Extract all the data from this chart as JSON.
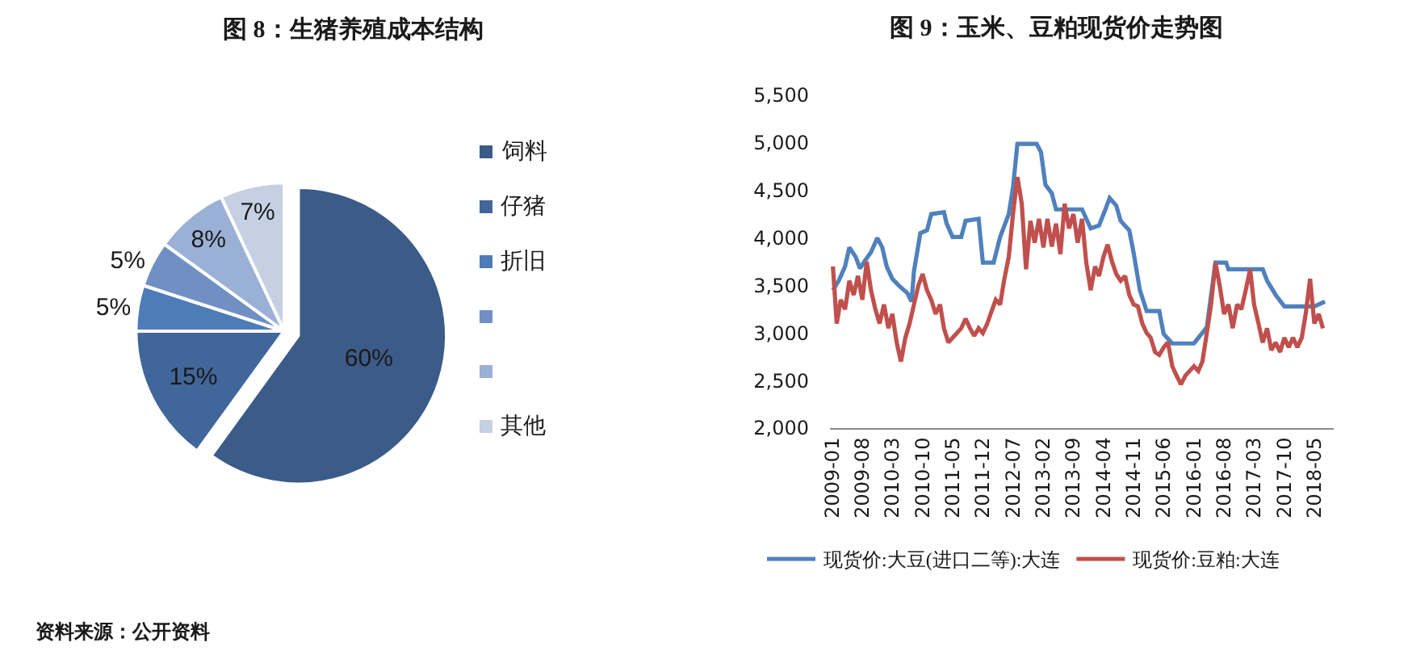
{
  "chart_data": [
    {
      "type": "pie",
      "title": "图 8：生猪养殖成本结构",
      "categories": [
        "饲料",
        "仔猪",
        "折旧",
        null,
        null,
        "其他"
      ],
      "values": [
        60,
        15,
        5,
        5,
        8,
        7
      ],
      "colors": [
        "#3b5b88",
        "#41669a",
        "#4d7cb8",
        "#7090c4",
        "#9bb0d5",
        "#c6d0e3"
      ],
      "value_labels": [
        "60%",
        "15%",
        "5%",
        "5%",
        "8%",
        "7%"
      ],
      "legend": "right",
      "annotations": [
        "资料来源：公开资料"
      ]
    },
    {
      "type": "line",
      "title": "图 9：玉米、豆粕现货价走势图",
      "series": [
        {
          "name": "现货价:大豆(进口二等):大连",
          "color": "#4f81bd",
          "x": [
            "2009-01-05",
            "2009-02-15",
            "2009-04-01",
            "2009-05-01",
            "2009-06-15",
            "2009-07-15",
            "2009-08-15",
            "2009-10-01",
            "2009-11-15",
            "2009-12-20",
            "2010-01-20",
            "2010-03-01",
            "2010-04-15",
            "2010-06-15",
            "2010-07-15",
            "2010-08-01",
            "2010-09-15",
            "2010-11-01",
            "2010-12-01",
            "2011-03-01",
            "2011-03-20",
            "2011-05-01",
            "2011-07-01",
            "2011-08-01",
            "2011-11-01",
            "2011-12-01",
            "2012-02-15",
            "2012-04-01",
            "2012-06-01",
            "2012-07-01",
            "2012-08-01",
            "2012-12-15",
            "2013-01-15",
            "2013-02-15",
            "2013-04-01",
            "2013-05-01",
            "2013-11-01",
            "2014-01-01",
            "2014-03-01",
            "2014-04-15",
            "2014-05-15",
            "2014-07-01",
            "2014-08-01",
            "2014-10-01",
            "2014-11-01",
            "2014-12-15",
            "2015-02-01",
            "2015-05-01",
            "2015-06-01",
            "2015-08-01",
            "2016-01-01",
            "2016-04-01",
            "2016-06-01",
            "2016-08-15",
            "2016-09-01",
            "2017-05-01",
            "2017-06-01",
            "2017-08-01",
            "2017-10-01",
            "2018-05-01",
            "2018-07-15"
          ],
          "values": [
            3450,
            3550,
            3700,
            3900,
            3800,
            3680,
            3750,
            3850,
            4000,
            3900,
            3700,
            3570,
            3500,
            3420,
            3330,
            3650,
            4050,
            4080,
            4250,
            4270,
            4150,
            4010,
            4010,
            4180,
            4200,
            3740,
            3740,
            4010,
            4250,
            4530,
            4990,
            4990,
            4900,
            4560,
            4470,
            4300,
            4300,
            4100,
            4130,
            4300,
            4420,
            4340,
            4180,
            4080,
            3840,
            3450,
            3230,
            3230,
            2990,
            2890,
            2890,
            3060,
            3740,
            3740,
            3670,
            3670,
            3550,
            3400,
            3280,
            3280,
            3330
          ]
        },
        {
          "name": "现货价:豆粕:大连",
          "color": "#c0504d",
          "x": [
            "2009-01-05",
            "2009-02-01",
            "2009-03-01",
            "2009-04-01",
            "2009-05-01",
            "2009-06-01",
            "2009-07-01",
            "2009-08-01",
            "2009-09-01",
            "2009-10-01",
            "2009-11-01",
            "2009-12-01",
            "2010-01-01",
            "2010-02-01",
            "2010-03-01",
            "2010-04-01",
            "2010-05-01",
            "2010-06-01",
            "2010-07-01",
            "2010-08-01",
            "2010-09-01",
            "2010-10-01",
            "2010-11-01",
            "2010-12-01",
            "2011-01-01",
            "2011-02-01",
            "2011-03-01",
            "2011-04-01",
            "2011-05-01",
            "2011-06-01",
            "2011-07-01",
            "2011-08-01",
            "2011-09-01",
            "2011-10-01",
            "2011-11-01",
            "2011-12-01",
            "2012-01-01",
            "2012-02-01",
            "2012-03-01",
            "2012-04-01",
            "2012-05-01",
            "2012-06-01",
            "2012-07-01",
            "2012-08-01",
            "2012-09-01",
            "2012-10-01",
            "2012-11-01",
            "2012-12-01",
            "2013-01-01",
            "2013-02-01",
            "2013-03-01",
            "2013-04-01",
            "2013-05-01",
            "2013-06-01",
            "2013-07-01",
            "2013-08-01",
            "2013-09-01",
            "2013-10-01",
            "2013-11-01",
            "2013-12-01",
            "2014-01-01",
            "2014-02-01",
            "2014-03-01",
            "2014-04-01",
            "2014-05-01",
            "2014-06-01",
            "2014-07-01",
            "2014-08-01",
            "2014-09-01",
            "2014-10-01",
            "2014-11-01",
            "2014-12-01",
            "2015-01-01",
            "2015-02-01",
            "2015-03-01",
            "2015-04-01",
            "2015-05-01",
            "2015-06-01",
            "2015-07-01",
            "2015-08-01",
            "2015-09-01",
            "2015-10-01",
            "2015-11-01",
            "2015-12-01",
            "2016-01-01",
            "2016-02-01",
            "2016-03-01",
            "2016-04-01",
            "2016-05-01",
            "2016-06-01",
            "2016-07-01",
            "2016-08-01",
            "2016-09-01",
            "2016-10-01",
            "2016-11-01",
            "2016-12-01",
            "2017-01-01",
            "2017-02-01",
            "2017-03-01",
            "2017-04-01",
            "2017-05-01",
            "2017-06-01",
            "2017-07-01",
            "2017-08-01",
            "2017-09-01",
            "2017-10-01",
            "2017-11-01",
            "2017-12-01",
            "2018-01-01",
            "2018-02-01",
            "2018-03-01",
            "2018-04-01",
            "2018-05-01",
            "2018-06-01",
            "2018-07-01"
          ],
          "values": [
            3700,
            3100,
            3350,
            3250,
            3550,
            3400,
            3600,
            3350,
            3750,
            3450,
            3250,
            3100,
            3300,
            3050,
            3200,
            2900,
            2700,
            2950,
            3100,
            3300,
            3500,
            3620,
            3450,
            3350,
            3200,
            3300,
            3050,
            2900,
            2950,
            3000,
            3050,
            3150,
            3050,
            2970,
            3050,
            3000,
            3100,
            3230,
            3350,
            3300,
            3570,
            3800,
            4250,
            4640,
            4360,
            3670,
            4180,
            3950,
            4200,
            3900,
            4200,
            3910,
            4150,
            3830,
            4360,
            4100,
            4250,
            3950,
            4200,
            3740,
            3450,
            3700,
            3600,
            3800,
            3930,
            3750,
            3620,
            3550,
            3600,
            3400,
            3300,
            3280,
            3100,
            3000,
            2950,
            2800,
            2770,
            2850,
            2900,
            2650,
            2550,
            2460,
            2550,
            2600,
            2650,
            2600,
            2700,
            3000,
            3300,
            3740,
            3500,
            3200,
            3300,
            3050,
            3300,
            3250,
            3450,
            3670,
            3300,
            3100,
            2900,
            3050,
            2820,
            2900,
            2800,
            2950,
            2850,
            2950,
            2850,
            2950,
            3200,
            3570,
            3100,
            3200,
            3050
          ]
        }
      ],
      "xlim": [
        "2008-12-15",
        "2018-09-15"
      ],
      "xticks": [
        "2009-01",
        "2009-08",
        "2010-03",
        "2010-10",
        "2011-05",
        "2011-12",
        "2012-07",
        "2013-02",
        "2013-09",
        "2014-04",
        "2014-11",
        "2015-06",
        "2016-01",
        "2016-08",
        "2017-03",
        "2017-10",
        "2018-05"
      ],
      "ylim": [
        2000,
        5500
      ],
      "yticks": [
        {
          "value": 2000,
          "label": "2,000"
        },
        {
          "value": 2500,
          "label": "2,500"
        },
        {
          "value": 3000,
          "label": "3,000"
        },
        {
          "value": 3500,
          "label": "3,500"
        },
        {
          "value": 4000,
          "label": "4,000"
        },
        {
          "value": 4500,
          "label": "4,500"
        },
        {
          "value": 5000,
          "label": "5,000"
        },
        {
          "value": 5500,
          "label": "5,500"
        }
      ],
      "legend": "bottom",
      "line_style": "solid"
    }
  ]
}
